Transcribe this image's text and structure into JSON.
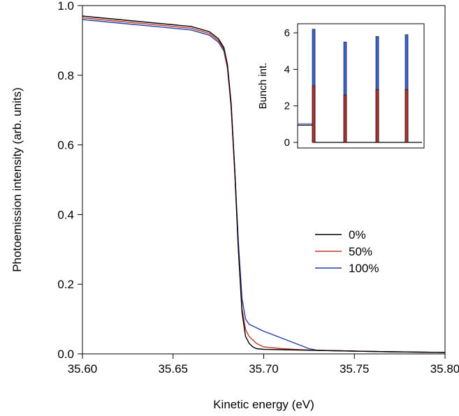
{
  "chart_data": [
    {
      "type": "line",
      "title": "",
      "xlabel": "Kinetic energy (eV)",
      "ylabel": "Photoemission intensity (arb. units)",
      "xlim": [
        35.6,
        35.8
      ],
      "ylim": [
        0.0,
        1.0
      ],
      "xticks": [
        "35.60",
        "35.65",
        "35.70",
        "35.75",
        "35.80"
      ],
      "yticks": [
        "0.0",
        "0.2",
        "0.4",
        "0.6",
        "0.8",
        "1.0"
      ],
      "legend": {
        "placement": "center-right"
      },
      "series": [
        {
          "name": "0%",
          "color": "#000000",
          "x": [
            35.6,
            35.62,
            35.64,
            35.66,
            35.67,
            35.675,
            35.678,
            35.68,
            35.682,
            35.684,
            35.686,
            35.688,
            35.69,
            35.692,
            35.694,
            35.696,
            35.7,
            35.71,
            35.72,
            35.73,
            35.75,
            35.77,
            35.8
          ],
          "y": [
            0.97,
            0.96,
            0.95,
            0.94,
            0.925,
            0.905,
            0.88,
            0.83,
            0.72,
            0.53,
            0.3,
            0.12,
            0.05,
            0.03,
            0.02,
            0.015,
            0.013,
            0.012,
            0.011,
            0.01,
            0.008,
            0.006,
            0.004
          ]
        },
        {
          "name": "50%",
          "color": "#c0392b",
          "x": [
            35.6,
            35.62,
            35.64,
            35.66,
            35.67,
            35.675,
            35.678,
            35.68,
            35.682,
            35.684,
            35.686,
            35.688,
            35.69,
            35.692,
            35.694,
            35.696,
            35.7,
            35.71,
            35.72,
            35.73,
            35.75,
            35.77,
            35.8
          ],
          "y": [
            0.965,
            0.955,
            0.945,
            0.935,
            0.92,
            0.9,
            0.875,
            0.82,
            0.71,
            0.52,
            0.3,
            0.13,
            0.07,
            0.05,
            0.04,
            0.03,
            0.02,
            0.015,
            0.012,
            0.01,
            0.008,
            0.006,
            0.004
          ]
        },
        {
          "name": "100%",
          "color": "#1f3fa8",
          "x": [
            35.6,
            35.62,
            35.64,
            35.66,
            35.67,
            35.675,
            35.678,
            35.68,
            35.682,
            35.684,
            35.686,
            35.688,
            35.69,
            35.692,
            35.694,
            35.696,
            35.7,
            35.71,
            35.72,
            35.725,
            35.73,
            35.75,
            35.77,
            35.8
          ],
          "y": [
            0.96,
            0.95,
            0.94,
            0.93,
            0.915,
            0.895,
            0.87,
            0.82,
            0.71,
            0.53,
            0.32,
            0.16,
            0.1,
            0.085,
            0.08,
            0.075,
            0.065,
            0.045,
            0.025,
            0.015,
            0.01,
            0.008,
            0.006,
            0.004
          ]
        }
      ]
    },
    {
      "type": "bar",
      "title": "",
      "xlabel": "",
      "ylabel": "Bunch int.",
      "ylim": [
        0,
        6.5
      ],
      "yticks": [
        "0",
        "2",
        "4",
        "6"
      ],
      "pre_level": 0.95,
      "series": [
        {
          "name": "",
          "color": "#3a66d6",
          "values": [
            6.2,
            5.5,
            5.8,
            5.9
          ]
        },
        {
          "name": "",
          "color": "#b03030",
          "values": [
            3.1,
            2.6,
            2.9,
            2.9
          ]
        }
      ]
    }
  ]
}
